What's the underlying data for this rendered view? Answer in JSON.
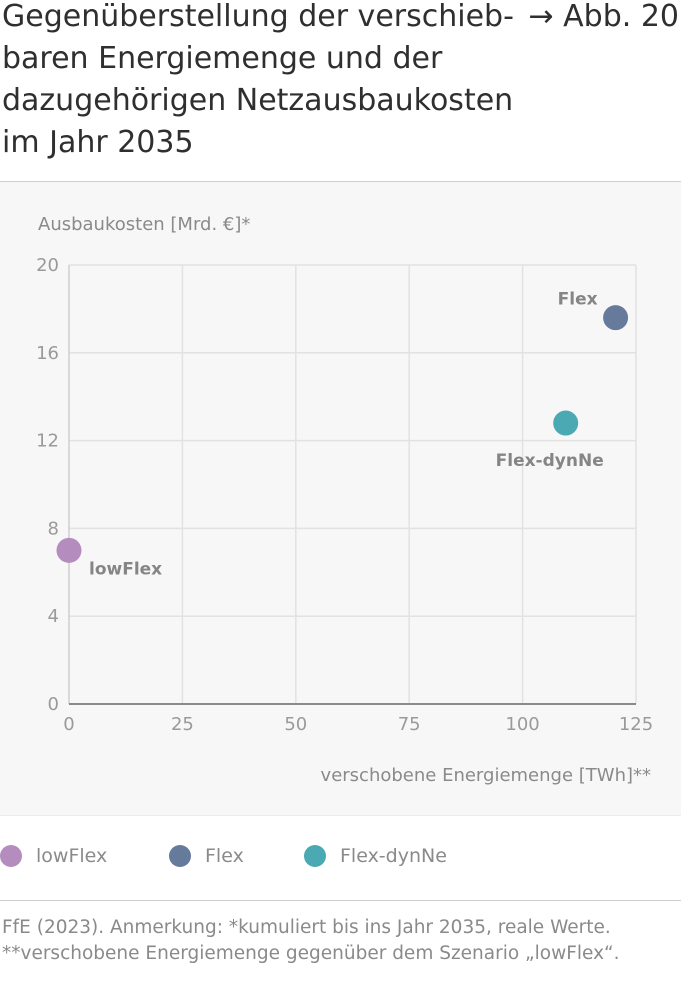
{
  "header": {
    "title": "Gegenüberstellung der verschiebbaren Energiemenge und der dazugehörigen Netzausbaukosten im Jahr 2035",
    "title_lines": [
      "Gegenüberstellung der verschieb-",
      "baren Energiemenge und der",
      "dazugehörigen Netzausbaukosten",
      "im Jahr 2035"
    ],
    "figure_ref": "→ Abb. 20"
  },
  "chart_data": {
    "type": "scatter",
    "title": "Gegenüberstellung der verschiebbaren Energiemenge und der dazugehörigen Netzausbaukosten im Jahr 2035",
    "xlabel": "verschobene Energiemenge [TWh]**",
    "ylabel": "Ausbaukosten [Mrd. €]*",
    "xlim": [
      0,
      125
    ],
    "ylim": [
      0,
      20
    ],
    "xticks": [
      0,
      25,
      50,
      75,
      100,
      125
    ],
    "yticks": [
      0,
      4,
      8,
      12,
      16,
      20
    ],
    "grid": true,
    "legend_position": "bottom",
    "series": [
      {
        "name": "lowFlex",
        "x": 0,
        "y": 7.0,
        "color": "#b48cbd"
      },
      {
        "name": "Flex",
        "x": 120.5,
        "y": 17.6,
        "color": "#667a9c"
      },
      {
        "name": "Flex-dynNe",
        "x": 109.5,
        "y": 12.8,
        "color": "#4aa9b2"
      }
    ]
  },
  "legend": {
    "items": [
      "lowFlex",
      "Flex",
      "Flex-dynNe"
    ]
  },
  "source": {
    "line1": "FfE (2023). Anmerkung: *kumuliert bis ins Jahr 2035, reale Werte.",
    "line2": "**verschobene Energiemenge gegenüber dem Szenario „lowFlex“."
  }
}
